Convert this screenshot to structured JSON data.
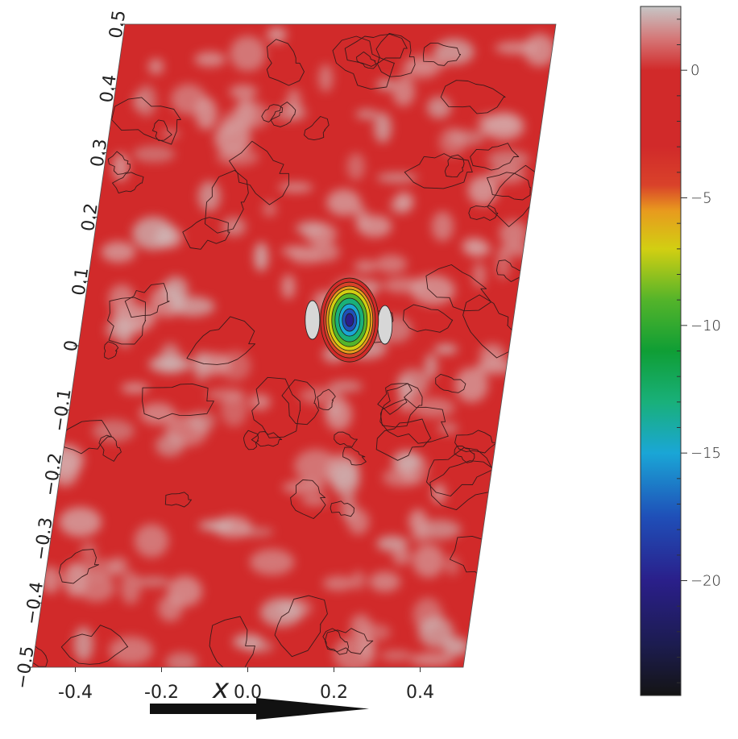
{
  "chart_data": {
    "type": "heatmap",
    "title": "",
    "xlabel": "x",
    "ylabel": "",
    "xlim": [
      -0.5,
      0.5
    ],
    "ylim": [
      -0.5,
      0.5
    ],
    "x_ticks": [
      {
        "value": -0.4,
        "label": "-0.4"
      },
      {
        "value": -0.2,
        "label": "-0.2"
      },
      {
        "value": 0.0,
        "label": "0.0"
      },
      {
        "value": 0.2,
        "label": "0.2"
      },
      {
        "value": 0.4,
        "label": "0.4"
      }
    ],
    "y_ticks": [
      {
        "value": 0.5,
        "label": "0.5"
      },
      {
        "value": 0.4,
        "label": "0.4"
      },
      {
        "value": 0.3,
        "label": "0.3"
      },
      {
        "value": 0.2,
        "label": "0.2"
      },
      {
        "value": 0.1,
        "label": "0.1"
      },
      {
        "value": 0.0,
        "label": "0"
      },
      {
        "value": -0.1,
        "label": "−0.1"
      },
      {
        "value": -0.2,
        "label": "−0.2"
      },
      {
        "value": -0.3,
        "label": "−0.3"
      },
      {
        "value": -0.4,
        "label": "−0.4"
      },
      {
        "value": -0.5,
        "label": "−0.5"
      }
    ],
    "colorbar": {
      "range": [
        -24.5,
        2.5
      ],
      "ticks": [
        {
          "value": 0,
          "label": "0"
        },
        {
          "value": -5,
          "label": "−5"
        },
        {
          "value": -10,
          "label": "−10"
        },
        {
          "value": -15,
          "label": "−15"
        },
        {
          "value": -20,
          "label": "−20"
        }
      ],
      "stops": [
        {
          "value": -24.5,
          "color": "#141414"
        },
        {
          "value": -22.5,
          "color": "#1c1c50"
        },
        {
          "value": -20,
          "color": "#2a1f8a"
        },
        {
          "value": -17.5,
          "color": "#1f4fb8"
        },
        {
          "value": -15,
          "color": "#1aa6d6"
        },
        {
          "value": -13,
          "color": "#19b07a"
        },
        {
          "value": -11,
          "color": "#0f9e35"
        },
        {
          "value": -9,
          "color": "#54b42a"
        },
        {
          "value": -7,
          "color": "#d2cf12"
        },
        {
          "value": -5.5,
          "color": "#e89a1e"
        },
        {
          "value": -4.5,
          "color": "#d9422a"
        },
        {
          "value": -3,
          "color": "#d12a2a"
        },
        {
          "value": 0,
          "color": "#d12a2a"
        },
        {
          "value": 1.2,
          "color": "#d57575"
        },
        {
          "value": 2.5,
          "color": "#c6c6c6"
        }
      ]
    },
    "feature": {
      "x": 0.12,
      "y": 0.04,
      "min_value": -24,
      "description": "deep minimum"
    },
    "grid": false
  }
}
